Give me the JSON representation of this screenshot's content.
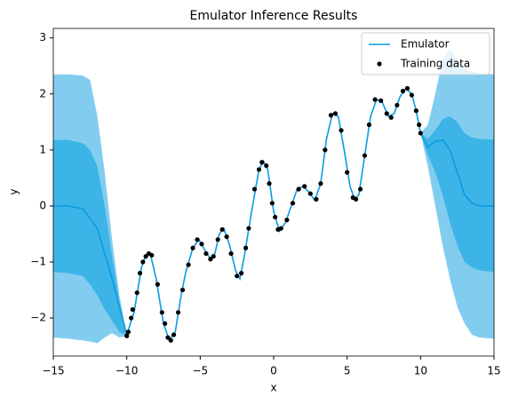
{
  "chart_data": {
    "type": "gp-emulator",
    "title": "Emulator Inference Results",
    "x_label": "x",
    "y_label": "y",
    "xlim": [
      -15,
      15
    ],
    "ylim": [
      -2.68,
      3.17
    ],
    "xticks": [
      {
        "value": -15,
        "label": "−15"
      },
      {
        "value": -10,
        "label": "−10"
      },
      {
        "value": -5,
        "label": "−5"
      },
      0,
      5,
      10,
      15
    ],
    "yticks": [
      {
        "value": -2,
        "label": "−2"
      },
      {
        "value": -1,
        "label": "−1"
      },
      0,
      1,
      2,
      3
    ],
    "legend_position": "upper right",
    "bands": [
      {
        "color": "#82cdef",
        "x": [
          -15,
          -14,
          -13,
          -12.5,
          -12,
          -11.5,
          -11,
          -10.5,
          -10
        ],
        "lower": [
          -2.35,
          -2.37,
          -2.4,
          -2.42,
          -2.45,
          -2.35,
          -2.27,
          -2.35,
          -2.32
        ],
        "upper": [
          2.35,
          2.35,
          2.33,
          2.25,
          1.6,
          0.6,
          -0.6,
          -1.6,
          -2.3
        ]
      },
      {
        "color": "#82cdef",
        "x": [
          10,
          10.5,
          11,
          11.5,
          12,
          12.5,
          13,
          13.5,
          14,
          15
        ],
        "lower": [
          1.3,
          0.7,
          0.0,
          -0.7,
          -1.3,
          -1.8,
          -2.1,
          -2.3,
          -2.35,
          -2.37
        ],
        "upper": [
          1.3,
          1.45,
          2.0,
          2.6,
          2.8,
          2.6,
          2.45,
          2.4,
          2.37,
          2.35
        ]
      },
      {
        "color": "#3db4e8",
        "x": [
          -15,
          -14,
          -13,
          -12.5,
          -12,
          -11.5,
          -11,
          -10.5,
          -10
        ],
        "lower": [
          -1.18,
          -1.2,
          -1.25,
          -1.4,
          -1.6,
          -1.85,
          -2.05,
          -2.25,
          -2.32
        ],
        "upper": [
          1.18,
          1.18,
          1.12,
          1.0,
          0.7,
          0.0,
          -0.9,
          -1.7,
          -2.3
        ]
      },
      {
        "color": "#3db4e8",
        "x": [
          10,
          10.5,
          11,
          11.5,
          12,
          12.5,
          13,
          13.5,
          14,
          15
        ],
        "lower": [
          1.3,
          0.9,
          0.6,
          0.2,
          -0.3,
          -0.7,
          -1.0,
          -1.1,
          -1.15,
          -1.18
        ],
        "upper": [
          1.3,
          1.2,
          1.35,
          1.55,
          1.6,
          1.5,
          1.3,
          1.22,
          1.2,
          1.18
        ]
      }
    ],
    "series": [
      {
        "name": "Emulator",
        "color": "#0a9be0",
        "x": [
          -15,
          -14,
          -13,
          -12,
          -11,
          -10,
          -9.5,
          -9,
          -8.7,
          -8.4,
          -8,
          -7.5,
          -7.1,
          -6.7,
          -6.3,
          -6,
          -5.5,
          -5.1,
          -4.7,
          -4.3,
          -4,
          -3.7,
          -3.4,
          -3,
          -2.6,
          -2.3,
          -2,
          -1.5,
          -1,
          -0.7,
          -0.4,
          0,
          0.4,
          0.8,
          1.2,
          1.6,
          2,
          2.4,
          2.8,
          3.2,
          3.6,
          4,
          4.4,
          4.8,
          5.2,
          5.5,
          5.8,
          6.2,
          6.6,
          7,
          7.4,
          7.8,
          8.2,
          8.6,
          9,
          9.4,
          9.7,
          10,
          10.5,
          11,
          11.5,
          12,
          12.5,
          13,
          13.5,
          14,
          15
        ],
        "values": [
          0,
          0,
          -0.05,
          -0.4,
          -1.3,
          -2.3,
          -1.9,
          -1.1,
          -0.88,
          -0.85,
          -1.3,
          -2.1,
          -2.4,
          -2.25,
          -1.6,
          -1.2,
          -0.75,
          -0.6,
          -0.78,
          -0.95,
          -0.85,
          -0.5,
          -0.4,
          -0.7,
          -1.15,
          -1.3,
          -0.9,
          -0.1,
          0.65,
          0.8,
          0.65,
          -0.1,
          -0.45,
          -0.3,
          0.0,
          0.3,
          0.35,
          0.25,
          0.1,
          0.4,
          1.2,
          1.65,
          1.6,
          1.0,
          0.35,
          0.13,
          0.2,
          0.9,
          1.6,
          1.9,
          1.85,
          1.6,
          1.65,
          1.95,
          2.1,
          2.0,
          1.7,
          1.3,
          1.05,
          1.15,
          1.18,
          1.0,
          0.6,
          0.2,
          0.05,
          0,
          0
        ]
      },
      {
        "name": "Training data",
        "color": "#000000",
        "marker": "dot",
        "x": [
          -10,
          -9.9,
          -9.7,
          -9.6,
          -9.3,
          -9.1,
          -8.9,
          -8.7,
          -8.5,
          -8.3,
          -7.9,
          -7.6,
          -7.4,
          -7.2,
          -7.0,
          -6.8,
          -6.5,
          -6.2,
          -5.8,
          -5.5,
          -5.2,
          -4.9,
          -4.6,
          -4.3,
          -4.1,
          -3.8,
          -3.5,
          -3.2,
          -2.9,
          -2.5,
          -2.2,
          -1.9,
          -1.7,
          -1.3,
          -1.0,
          -0.8,
          -0.5,
          -0.3,
          -0.1,
          0.1,
          0.3,
          0.5,
          0.9,
          1.3,
          1.7,
          2.1,
          2.5,
          2.9,
          3.2,
          3.5,
          3.9,
          4.2,
          4.6,
          5.0,
          5.4,
          5.6,
          5.9,
          6.2,
          6.5,
          6.9,
          7.3,
          7.7,
          8.0,
          8.4,
          8.8,
          9.1,
          9.4,
          9.7,
          9.9,
          10.0
        ],
        "values": [
          -2.32,
          -2.25,
          -2.0,
          -1.85,
          -1.55,
          -1.2,
          -1.0,
          -0.9,
          -0.85,
          -0.88,
          -1.4,
          -1.9,
          -2.1,
          -2.35,
          -2.4,
          -2.3,
          -1.9,
          -1.5,
          -1.05,
          -0.75,
          -0.6,
          -0.68,
          -0.85,
          -0.95,
          -0.9,
          -0.6,
          -0.42,
          -0.55,
          -0.85,
          -1.25,
          -1.2,
          -0.75,
          -0.4,
          0.3,
          0.65,
          0.78,
          0.72,
          0.4,
          0.05,
          -0.2,
          -0.42,
          -0.4,
          -0.25,
          0.05,
          0.3,
          0.35,
          0.22,
          0.12,
          0.4,
          1.0,
          1.62,
          1.65,
          1.35,
          0.6,
          0.15,
          0.12,
          0.3,
          0.9,
          1.45,
          1.9,
          1.88,
          1.65,
          1.58,
          1.8,
          2.05,
          2.1,
          1.98,
          1.7,
          1.45,
          1.3
        ]
      }
    ]
  }
}
